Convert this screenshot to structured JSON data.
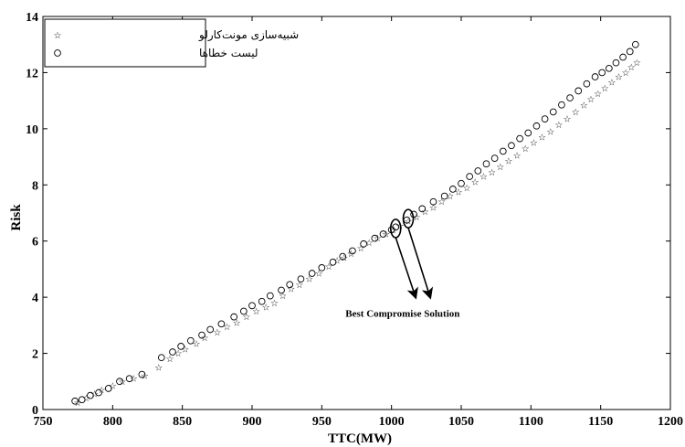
{
  "chart_data": {
    "type": "scatter",
    "title": "",
    "xlabel": "TTC(MW)",
    "ylabel": "Risk",
    "xlim": [
      750,
      1200
    ],
    "ylim": [
      0,
      14
    ],
    "xticks": [
      "750",
      "800",
      "850",
      "900",
      "950",
      "1000",
      "1050",
      "1100",
      "1150",
      "1200"
    ],
    "yticks": [
      "0",
      "2",
      "4",
      "6",
      "8",
      "10",
      "12",
      "14"
    ],
    "legend_position": "top-left",
    "grid": false,
    "series": [
      {
        "name": "شبیه‌سازی مونت‌کارلو",
        "marker": "star",
        "x": [
          775,
          781,
          787,
          792,
          800,
          807,
          815,
          823,
          833,
          841,
          847,
          852,
          860,
          866,
          875,
          882,
          889,
          896,
          903,
          910,
          916,
          922,
          928,
          934,
          941,
          948,
          955,
          961,
          966,
          971,
          978,
          984,
          990,
          996,
          1001,
          1006,
          1012,
          1018,
          1024,
          1030,
          1036,
          1042,
          1048,
          1054,
          1060,
          1066,
          1072,
          1078,
          1084,
          1090,
          1096,
          1102,
          1108,
          1114,
          1120,
          1126,
          1132,
          1138,
          1143,
          1148,
          1153,
          1158,
          1163,
          1168,
          1172,
          1176
        ],
        "y": [
          0.25,
          0.4,
          0.55,
          0.7,
          0.85,
          1.0,
          1.1,
          1.2,
          1.5,
          1.8,
          2.0,
          2.15,
          2.35,
          2.55,
          2.75,
          2.95,
          3.1,
          3.3,
          3.5,
          3.65,
          3.8,
          4.05,
          4.3,
          4.45,
          4.65,
          4.85,
          5.1,
          5.3,
          5.4,
          5.55,
          5.75,
          5.95,
          6.1,
          6.25,
          6.4,
          6.55,
          6.7,
          6.85,
          7.05,
          7.2,
          7.4,
          7.6,
          7.75,
          7.9,
          8.1,
          8.3,
          8.45,
          8.65,
          8.85,
          9.05,
          9.3,
          9.5,
          9.7,
          9.9,
          10.15,
          10.35,
          10.6,
          10.85,
          11.05,
          11.25,
          11.45,
          11.65,
          11.85,
          12.0,
          12.2,
          12.35
        ]
      },
      {
        "name": "لیست خطاها",
        "marker": "circle",
        "x": [
          773,
          778,
          784,
          790,
          797,
          805,
          812,
          821,
          835,
          843,
          849,
          856,
          864,
          870,
          878,
          887,
          894,
          900,
          907,
          913,
          921,
          927,
          935,
          943,
          950,
          958,
          965,
          972,
          980,
          988,
          994,
          1000,
          1003,
          1011,
          1016,
          1022,
          1030,
          1038,
          1044,
          1050,
          1056,
          1062,
          1068,
          1074,
          1080,
          1086,
          1092,
          1098,
          1104,
          1110,
          1116,
          1122,
          1128,
          1134,
          1140,
          1146,
          1151,
          1156,
          1161,
          1166,
          1171,
          1175
        ],
        "y": [
          0.3,
          0.35,
          0.5,
          0.6,
          0.75,
          1.0,
          1.1,
          1.25,
          1.85,
          2.05,
          2.25,
          2.45,
          2.65,
          2.85,
          3.05,
          3.3,
          3.5,
          3.7,
          3.85,
          4.05,
          4.25,
          4.45,
          4.65,
          4.85,
          5.05,
          5.25,
          5.45,
          5.65,
          5.9,
          6.1,
          6.25,
          6.4,
          6.5,
          6.75,
          6.95,
          7.15,
          7.4,
          7.6,
          7.85,
          8.05,
          8.3,
          8.5,
          8.75,
          8.95,
          9.2,
          9.4,
          9.65,
          9.85,
          10.1,
          10.35,
          10.6,
          10.85,
          11.1,
          11.35,
          11.6,
          11.85,
          12.0,
          12.15,
          12.35,
          12.55,
          12.75,
          13.0
        ]
      }
    ],
    "annotations": [
      {
        "text": "Best Compromise Solution",
        "x": 1025,
        "y": 3.3
      }
    ],
    "highlighted_points": [
      {
        "x": 1003,
        "y": 6.45
      },
      {
        "x": 1012,
        "y": 6.8
      }
    ]
  }
}
